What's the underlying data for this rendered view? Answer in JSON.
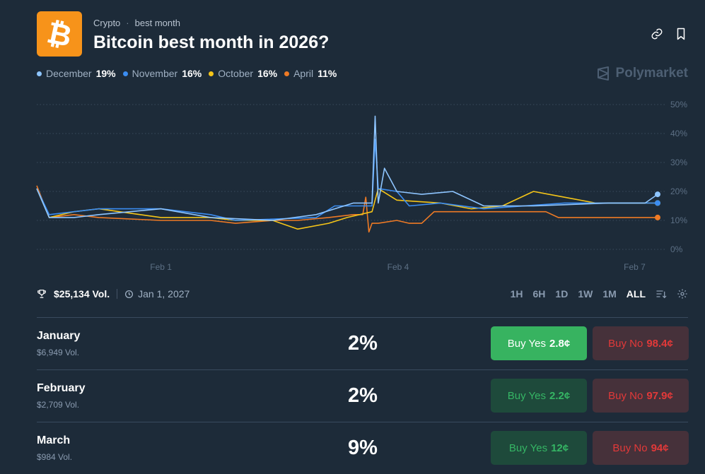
{
  "header": {
    "icon": "bitcoin-icon",
    "breadcrumb": [
      "Crypto",
      "best month"
    ],
    "title": "Bitcoin best month in 2026?",
    "actions": [
      "link-icon",
      "bookmark-icon"
    ]
  },
  "legend": [
    {
      "name": "December",
      "pct": "19%",
      "color": "#8ec5ff"
    },
    {
      "name": "November",
      "pct": "16%",
      "color": "#3b8df2"
    },
    {
      "name": "October",
      "pct": "16%",
      "color": "#f5c518"
    },
    {
      "name": "April",
      "pct": "11%",
      "color": "#ee7a25"
    }
  ],
  "brand": "Polymarket",
  "chart_data": {
    "type": "line",
    "x_ticks": [
      "Feb 1",
      "Feb 4",
      "Feb 7"
    ],
    "y_ticks": [
      "50%",
      "40%",
      "30%",
      "20%",
      "10%",
      "0%"
    ],
    "ylim": [
      0,
      50
    ],
    "grid": true,
    "x_range": [
      0,
      100
    ],
    "series": [
      {
        "name": "December",
        "color": "#8ec5ff",
        "points": [
          [
            0,
            21
          ],
          [
            2,
            11
          ],
          [
            6,
            11
          ],
          [
            10,
            12
          ],
          [
            20,
            14
          ],
          [
            28,
            11
          ],
          [
            38,
            10
          ],
          [
            45,
            12
          ],
          [
            51,
            16
          ],
          [
            54,
            16
          ],
          [
            54.5,
            46
          ],
          [
            55,
            16
          ],
          [
            56,
            28
          ],
          [
            58,
            20
          ],
          [
            62,
            19
          ],
          [
            67,
            20
          ],
          [
            72,
            15
          ],
          [
            80,
            15
          ],
          [
            92,
            16
          ],
          [
            98,
            16
          ],
          [
            100,
            19
          ]
        ]
      },
      {
        "name": "November",
        "color": "#3b8df2",
        "points": [
          [
            0,
            21
          ],
          [
            2,
            12
          ],
          [
            6,
            13
          ],
          [
            10,
            14
          ],
          [
            20,
            14
          ],
          [
            28,
            12
          ],
          [
            32,
            10
          ],
          [
            45,
            11
          ],
          [
            48,
            15
          ],
          [
            52,
            15
          ],
          [
            54,
            15
          ],
          [
            54.5,
            38
          ],
          [
            55,
            21
          ],
          [
            58,
            20
          ],
          [
            60,
            15
          ],
          [
            65,
            16
          ],
          [
            72,
            14
          ],
          [
            85,
            16
          ],
          [
            100,
            16
          ]
        ]
      },
      {
        "name": "October",
        "color": "#f5c518",
        "points": [
          [
            0,
            21
          ],
          [
            2,
            11
          ],
          [
            6,
            13
          ],
          [
            10,
            14
          ],
          [
            20,
            11
          ],
          [
            28,
            11
          ],
          [
            32,
            10
          ],
          [
            38,
            10
          ],
          [
            42,
            7
          ],
          [
            47,
            9
          ],
          [
            50,
            11
          ],
          [
            54,
            13
          ],
          [
            55,
            21
          ],
          [
            58,
            17
          ],
          [
            65,
            16
          ],
          [
            70,
            14
          ],
          [
            75,
            15
          ],
          [
            80,
            20
          ],
          [
            85,
            18
          ],
          [
            90,
            16
          ],
          [
            100,
            16
          ]
        ]
      },
      {
        "name": "April",
        "color": "#ee7a25",
        "points": [
          [
            0,
            22
          ],
          [
            2,
            11
          ],
          [
            6,
            12
          ],
          [
            10,
            11
          ],
          [
            20,
            10
          ],
          [
            28,
            10
          ],
          [
            32,
            9
          ],
          [
            38,
            10
          ],
          [
            42,
            10
          ],
          [
            47,
            11
          ],
          [
            51,
            12
          ],
          [
            52.5,
            12
          ],
          [
            53,
            18
          ],
          [
            53.5,
            6
          ],
          [
            54,
            9
          ],
          [
            55,
            9
          ],
          [
            58,
            10
          ],
          [
            60,
            9
          ],
          [
            62,
            9
          ],
          [
            64,
            13
          ],
          [
            66,
            13
          ],
          [
            70,
            13
          ],
          [
            82,
            13
          ],
          [
            84,
            11
          ],
          [
            90,
            11
          ],
          [
            100,
            11
          ]
        ]
      }
    ]
  },
  "stats": {
    "volume": "$25,134 Vol.",
    "end_date": "Jan 1, 2027",
    "ranges": [
      "1H",
      "6H",
      "1D",
      "1W",
      "1M",
      "ALL"
    ],
    "active_range": "ALL"
  },
  "outcomes": [
    {
      "name": "January",
      "vol": "$6,949 Vol.",
      "pct": "2%",
      "yes_label": "Buy Yes",
      "yes_price": "2.8¢",
      "no_label": "Buy No",
      "no_price": "98.4¢"
    },
    {
      "name": "February",
      "vol": "$2,709 Vol.",
      "pct": "2%",
      "yes_label": "Buy Yes",
      "yes_price": "2.2¢",
      "no_label": "Buy No",
      "no_price": "97.9¢"
    },
    {
      "name": "March",
      "vol": "$984 Vol.",
      "pct": "9%",
      "yes_label": "Buy Yes",
      "yes_price": "12¢",
      "no_label": "Buy No",
      "no_price": "94¢"
    }
  ]
}
